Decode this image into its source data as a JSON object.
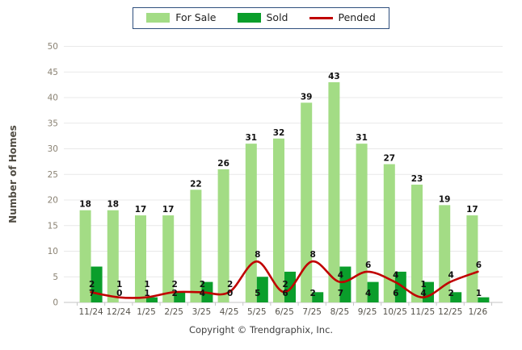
{
  "legend": {
    "items": [
      {
        "label": "For Sale",
        "type": "bar",
        "color": "#a3dc85"
      },
      {
        "label": "Sold",
        "type": "bar",
        "color": "#0a9e2b"
      },
      {
        "label": "Pended",
        "type": "line",
        "color": "#c00000"
      }
    ]
  },
  "footer": {
    "copyright": "Copyright © Trendgraphix, Inc."
  },
  "chart_data": {
    "type": "bar+line",
    "title": "",
    "ylabel": "Number of Homes",
    "xlabel": "",
    "ylim": [
      0,
      50
    ],
    "ytick_step": 5,
    "grid": true,
    "legend_position": "top",
    "categories": [
      "11/24",
      "12/24",
      "1/25",
      "2/25",
      "3/25",
      "4/25",
      "5/25",
      "6/25",
      "7/25",
      "8/25",
      "9/25",
      "10/25",
      "11/25",
      "12/25",
      "1/26"
    ],
    "series": [
      {
        "name": "For Sale",
        "type": "bar",
        "color": "#a3dc85",
        "values": [
          18,
          18,
          17,
          17,
          22,
          26,
          31,
          32,
          39,
          43,
          31,
          27,
          23,
          19,
          17
        ]
      },
      {
        "name": "Sold",
        "type": "bar",
        "color": "#0a9e2b",
        "values": [
          7,
          0,
          1,
          2,
          4,
          0,
          5,
          6,
          2,
          7,
          4,
          6,
          4,
          2,
          1
        ]
      },
      {
        "name": "Pended",
        "type": "line",
        "color": "#c00000",
        "values": [
          2,
          1,
          1,
          2,
          2,
          2,
          8,
          2,
          8,
          4,
          6,
          4,
          1,
          4,
          6
        ]
      }
    ],
    "colors": {
      "grid_line": "#e9e9e9",
      "axis_line": "#c6c6c6",
      "y_tick_label": "#8a8273",
      "x_tick_label": "#55524a",
      "value_label": "#111111"
    }
  }
}
